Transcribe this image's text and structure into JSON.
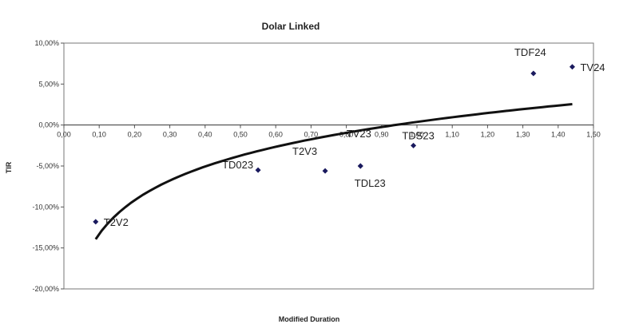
{
  "chart_data": {
    "type": "scatter",
    "title": "Dolar Linked",
    "xlabel": "Modified Duration",
    "ylabel": "TIR",
    "xlim": [
      0.0,
      1.5
    ],
    "ylim": [
      -20,
      10
    ],
    "x_tick_values": [
      0.0,
      0.1,
      0.2,
      0.3,
      0.4,
      0.5,
      0.6,
      0.7,
      0.8,
      0.9,
      1.0,
      1.1,
      1.2,
      1.3,
      1.4,
      1.5
    ],
    "x_tick_labels": [
      "0,00",
      "0,10",
      "0,20",
      "0,30",
      "0,40",
      "0,50",
      "0,60",
      "0,70",
      "0,80",
      "0,90",
      "1,00",
      "1,10",
      "1,20",
      "1,30",
      "1,40",
      "1,50"
    ],
    "y_tick_values": [
      10,
      5,
      0,
      -5,
      -10,
      -15,
      -20
    ],
    "y_tick_labels": [
      "10,00%",
      "5,00%",
      "0,00%",
      "-5,00%",
      "-10,00%",
      "-15,00%",
      "-20,00%"
    ],
    "grid": false,
    "legend": "none",
    "point_color": "#1a1a5e",
    "trend_color": "#111111",
    "points": [
      {
        "label": "T2V2",
        "x": 0.09,
        "y": -11.8
      },
      {
        "label": "TD023",
        "x": 0.55,
        "y": -5.5
      },
      {
        "label": "T2V3",
        "x": 0.74,
        "y": -5.6
      },
      {
        "label": "TV23",
        "x": 0.84,
        "y": -5.0
      },
      {
        "label": "TDL23",
        "x": 0.84,
        "y": -5.0
      },
      {
        "label": "TDS23",
        "x": 0.99,
        "y": -2.5
      },
      {
        "label": "TDF24",
        "x": 1.33,
        "y": 6.3
      },
      {
        "label": "TV24",
        "x": 1.44,
        "y": 7.1
      }
    ],
    "trendline": {
      "type": "logarithmic",
      "x_range": [
        0.09,
        1.44
      ],
      "samples": [
        {
          "x": 0.09,
          "y": -14.3
        },
        {
          "x": 0.2,
          "y": -8.8
        },
        {
          "x": 0.4,
          "y": -4.9
        },
        {
          "x": 0.6,
          "y": -2.6
        },
        {
          "x": 0.8,
          "y": -0.9
        },
        {
          "x": 1.0,
          "y": 0.3
        },
        {
          "x": 1.2,
          "y": 1.4
        },
        {
          "x": 1.44,
          "y": 2.4
        }
      ]
    }
  }
}
